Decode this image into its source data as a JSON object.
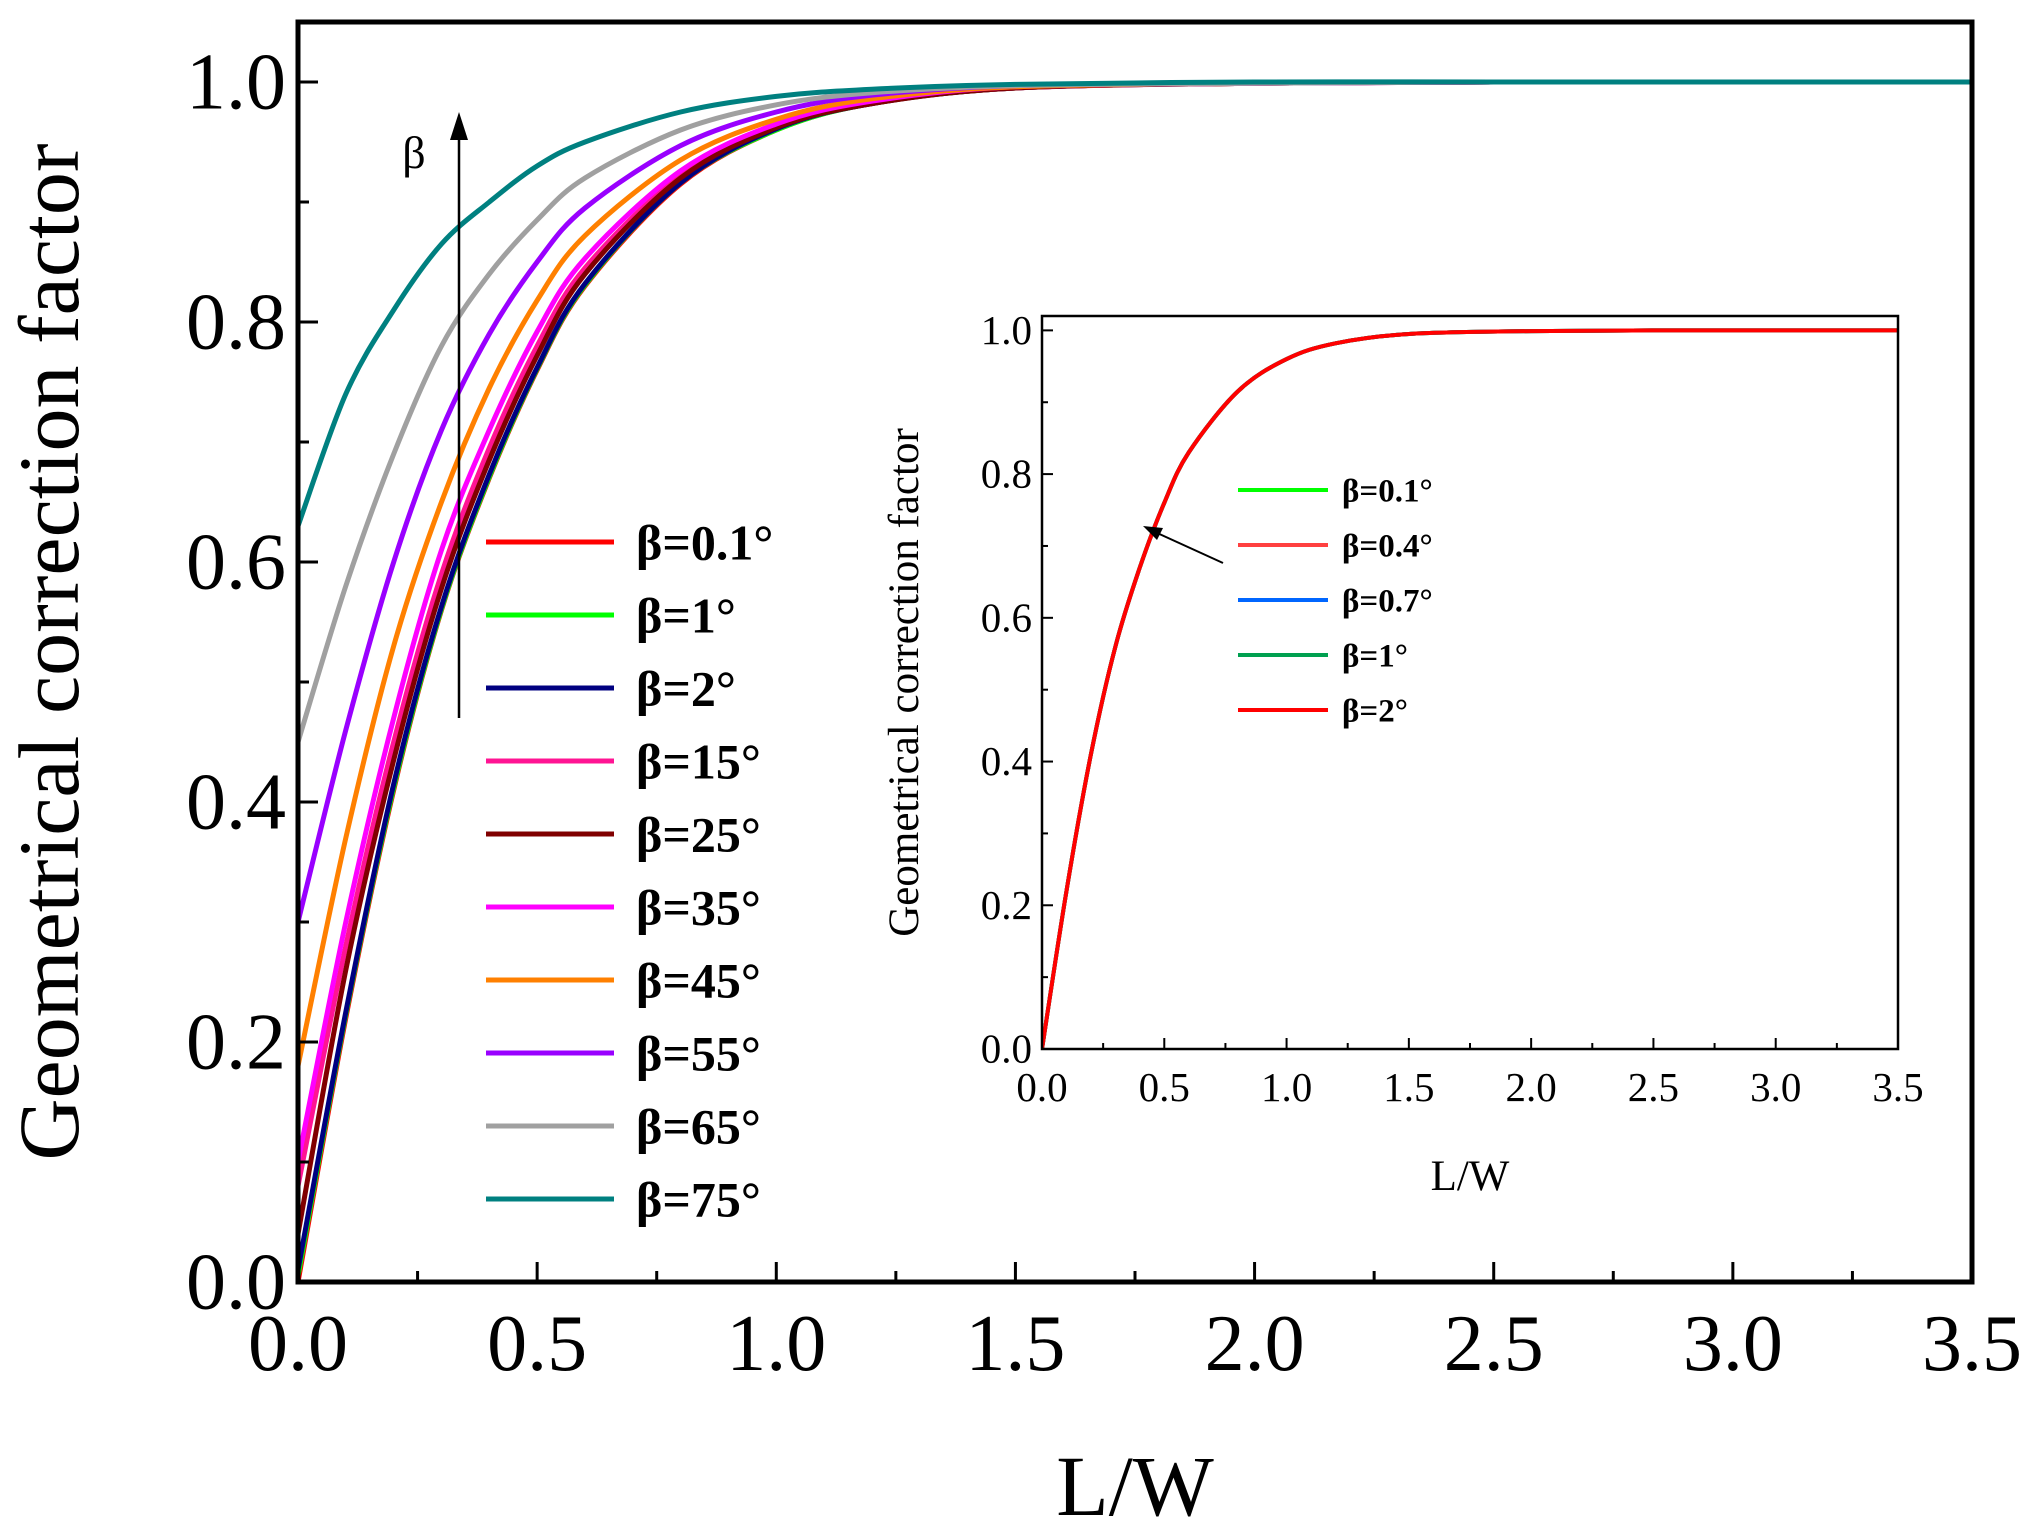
{
  "chart_data": [
    {
      "id": "main",
      "type": "line",
      "xlabel": "L/W",
      "ylabel": "Geometrical correction factor",
      "xlim": [
        0,
        3.5
      ],
      "ylim": [
        0,
        1.05
      ],
      "xticks": [
        0.0,
        0.5,
        1.0,
        1.5,
        2.0,
        2.5,
        3.0,
        3.5
      ],
      "xtick_labels": [
        "0.0",
        "0.5",
        "1.0",
        "1.5",
        "2.0",
        "2.5",
        "3.0",
        "3.5"
      ],
      "yticks": [
        0.0,
        0.2,
        0.4,
        0.6,
        0.8,
        1.0
      ],
      "ytick_labels": [
        "0.0",
        "0.2",
        "0.4",
        "0.6",
        "0.8",
        "1.0"
      ],
      "grid": false,
      "legend_position": "center",
      "annotation": {
        "text": "β",
        "arrow": "upward arrow indicating increasing β"
      },
      "x": [
        0,
        0.1,
        0.2,
        0.3,
        0.4,
        0.5,
        0.6,
        0.8,
        1.0,
        1.2,
        1.5,
        2.0,
        2.5,
        3.0,
        3.5
      ],
      "series": [
        {
          "name": "β=0.1°",
          "color": "#ff0000",
          "values": [
            0.0,
            0.22,
            0.41,
            0.56,
            0.67,
            0.76,
            0.83,
            0.915,
            0.96,
            0.982,
            0.995,
            0.999,
            1.0,
            1.0,
            1.0
          ]
        },
        {
          "name": "β=1°",
          "color": "#00ff00",
          "values": [
            0.005,
            0.223,
            0.412,
            0.561,
            0.671,
            0.761,
            0.831,
            0.916,
            0.96,
            0.982,
            0.995,
            0.999,
            1.0,
            1.0,
            1.0
          ]
        },
        {
          "name": "β=2°",
          "color": "#000080",
          "values": [
            0.01,
            0.225,
            0.415,
            0.563,
            0.673,
            0.762,
            0.832,
            0.916,
            0.961,
            0.982,
            0.995,
            0.999,
            1.0,
            1.0,
            1.0
          ]
        },
        {
          "name": "β=15°",
          "color": "#ff1493",
          "values": [
            0.08,
            0.28,
            0.45,
            0.59,
            0.695,
            0.78,
            0.845,
            0.922,
            0.963,
            0.983,
            0.995,
            0.999,
            1.0,
            1.0,
            1.0
          ]
        },
        {
          "name": "β=25°",
          "color": "#800000",
          "values": [
            0.04,
            0.26,
            0.435,
            0.578,
            0.685,
            0.772,
            0.84,
            0.92,
            0.962,
            0.982,
            0.995,
            0.999,
            1.0,
            1.0,
            1.0
          ]
        },
        {
          "name": "β=35°",
          "color": "#ff00ff",
          "values": [
            0.1,
            0.3,
            0.47,
            0.61,
            0.71,
            0.792,
            0.853,
            0.926,
            0.965,
            0.984,
            0.996,
            0.999,
            1.0,
            1.0,
            1.0
          ]
        },
        {
          "name": "β=45°",
          "color": "#ff8000",
          "values": [
            0.18,
            0.37,
            0.53,
            0.65,
            0.745,
            0.818,
            0.872,
            0.935,
            0.969,
            0.986,
            0.996,
            0.999,
            1.0,
            1.0,
            1.0
          ]
        },
        {
          "name": "β=55°",
          "color": "#9900ff",
          "values": [
            0.3,
            0.46,
            0.6,
            0.71,
            0.79,
            0.85,
            0.895,
            0.947,
            0.975,
            0.989,
            0.997,
            0.999,
            1.0,
            1.0,
            1.0
          ]
        },
        {
          "name": "β=65°",
          "color": "#a0a0a0",
          "values": [
            0.45,
            0.58,
            0.69,
            0.78,
            0.84,
            0.885,
            0.92,
            0.96,
            0.981,
            0.991,
            0.997,
            0.999,
            1.0,
            1.0,
            1.0
          ]
        },
        {
          "name": "β=75°",
          "color": "#008080",
          "values": [
            0.63,
            0.74,
            0.81,
            0.865,
            0.9,
            0.93,
            0.95,
            0.975,
            0.988,
            0.994,
            0.998,
            1.0,
            1.0,
            1.0,
            1.0
          ]
        }
      ]
    },
    {
      "id": "inset",
      "type": "line",
      "xlabel": "L/W",
      "ylabel": "Geometrical correction factor",
      "xlim": [
        0,
        3.5
      ],
      "ylim": [
        0,
        1.02
      ],
      "xticks": [
        0.0,
        0.5,
        1.0,
        1.5,
        2.0,
        2.5,
        3.0,
        3.5
      ],
      "xtick_labels": [
        "0.0",
        "0.5",
        "1.0",
        "1.5",
        "2.0",
        "2.5",
        "3.0",
        "3.5"
      ],
      "yticks": [
        0.0,
        0.2,
        0.4,
        0.6,
        0.8,
        1.0
      ],
      "ytick_labels": [
        "0.0",
        "0.2",
        "0.4",
        "0.6",
        "0.8",
        "1.0"
      ],
      "grid": false,
      "legend_position": "center",
      "annotation": {
        "text": "",
        "arrow": "arrow pointing to overlapping curves"
      },
      "x": [
        0,
        0.1,
        0.2,
        0.3,
        0.4,
        0.5,
        0.6,
        0.8,
        1.0,
        1.2,
        1.5,
        2.0,
        2.5,
        3.0,
        3.5
      ],
      "series": [
        {
          "name": "β=0.1°",
          "color": "#00ff00",
          "values": [
            0.0,
            0.22,
            0.41,
            0.56,
            0.67,
            0.76,
            0.83,
            0.915,
            0.96,
            0.982,
            0.995,
            0.999,
            1.0,
            1.0,
            1.0
          ]
        },
        {
          "name": "β=0.4°",
          "color": "#ff4040",
          "values": [
            0.0,
            0.22,
            0.41,
            0.56,
            0.67,
            0.76,
            0.83,
            0.915,
            0.96,
            0.982,
            0.995,
            0.999,
            1.0,
            1.0,
            1.0
          ]
        },
        {
          "name": "β=0.7°",
          "color": "#0066ff",
          "values": [
            0.0,
            0.22,
            0.41,
            0.56,
            0.67,
            0.76,
            0.83,
            0.915,
            0.96,
            0.982,
            0.995,
            0.999,
            1.0,
            1.0,
            1.0
          ]
        },
        {
          "name": "β=1°",
          "color": "#00a050",
          "values": [
            0.0,
            0.22,
            0.41,
            0.56,
            0.67,
            0.76,
            0.83,
            0.915,
            0.96,
            0.982,
            0.995,
            0.999,
            1.0,
            1.0,
            1.0
          ]
        },
        {
          "name": "β=2°",
          "color": "#ff0000",
          "values": [
            0.0,
            0.22,
            0.41,
            0.56,
            0.67,
            0.76,
            0.83,
            0.915,
            0.96,
            0.982,
            0.995,
            0.999,
            1.0,
            1.0,
            1.0
          ]
        }
      ]
    }
  ]
}
